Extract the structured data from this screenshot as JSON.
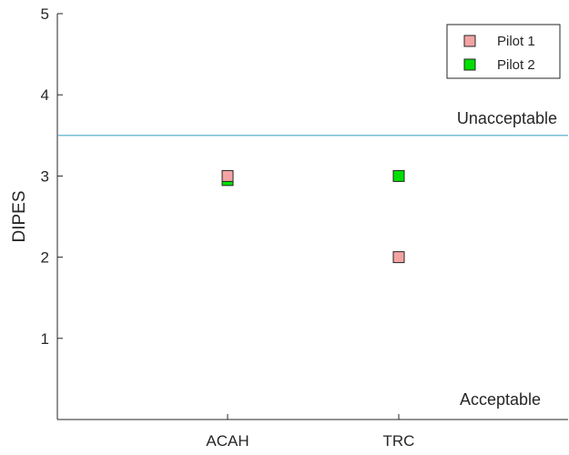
{
  "chart_data": {
    "type": "scatter",
    "categories": [
      "ACAH",
      "TRC"
    ],
    "ylabel": "DIPES",
    "ylim": [
      0,
      5
    ],
    "yticks": [
      1,
      2,
      3,
      4,
      5
    ],
    "series": [
      {
        "name": "Pilot 1",
        "color": "#f4a3a3",
        "values": [
          3,
          2
        ]
      },
      {
        "name": "Pilot 2",
        "color": "#00e000",
        "values": [
          2.95,
          3
        ]
      }
    ],
    "reference_line": {
      "y": 3.5,
      "color": "#4aa8c9"
    },
    "annotations": {
      "upper": "Unacceptable",
      "lower": "Acceptable"
    },
    "legend_position": "top-right",
    "grid": false
  }
}
